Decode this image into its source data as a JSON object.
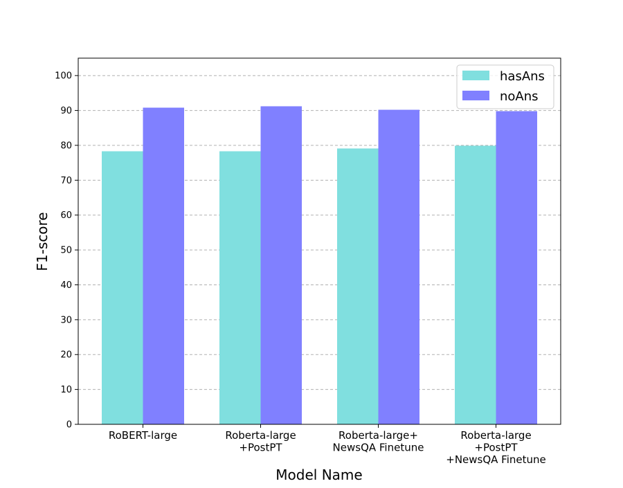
{
  "chart_data": {
    "type": "bar",
    "title": "",
    "xlabel": "Model Name",
    "ylabel": "F1-score",
    "ylim": [
      0,
      105
    ],
    "yticks": [
      0,
      10,
      20,
      30,
      40,
      50,
      60,
      70,
      80,
      90,
      100
    ],
    "grid": "horizontal-dashed",
    "legend_position": "top-right",
    "categories": [
      [
        "RoBERT-large"
      ],
      [
        "Roberta-large",
        "+PostPT"
      ],
      [
        "Roberta-large+",
        "NewsQA Finetune"
      ],
      [
        "Roberta-large",
        "+PostPT",
        "+NewsQA Finetune"
      ]
    ],
    "series": [
      {
        "name": "hasAns",
        "color": "#80dfdf",
        "values": [
          78.3,
          78.3,
          79.1,
          79.9
        ]
      },
      {
        "name": "noAns",
        "color": "#8080ff",
        "values": [
          90.8,
          91.2,
          90.2,
          89.8
        ]
      }
    ]
  }
}
